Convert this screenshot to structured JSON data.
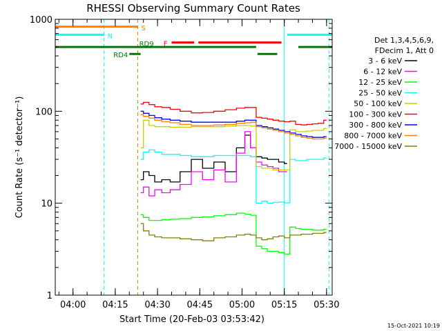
{
  "chart_data": {
    "type": "line",
    "title": "RHESSI Observing Summary Count Rates",
    "xlabel": "Start Time (20-Feb-03 03:53:42)",
    "ylabel": "Count Rate (s⁻¹ detector⁻¹)",
    "yscale": "log",
    "ylim": [
      1,
      1000
    ],
    "xlim": [
      "03:53:42",
      "05:32:00"
    ],
    "x_ticks": [
      "04:00",
      "04:15",
      "04:30",
      "04:45",
      "05:00",
      "05:15",
      "05:30"
    ],
    "y_ticks": [
      "1",
      "10",
      "100",
      "1000"
    ],
    "legend_header": [
      "Det 1,3,4,5,6,9,",
      "FDecim 1, Att 0"
    ],
    "legend_position": "right",
    "timestamp": "15-Oct-2021 10:19",
    "flag_bars": [
      {
        "label": "S",
        "color": "#ff7f00",
        "y": 830,
        "segments": [
          [
            "03:53:42",
            "04:23:00"
          ]
        ]
      },
      {
        "label": "N",
        "color": "#00ffff",
        "y": 680,
        "segments": [
          [
            "03:53:42",
            "04:11:00"
          ],
          [
            "05:16:00",
            "05:32:00"
          ]
        ]
      },
      {
        "label": "F",
        "color": "#ff0000",
        "y": 560,
        "segments": [
          [
            "04:35:00",
            "04:43:00"
          ],
          [
            "04:44:30",
            "05:14:00"
          ]
        ]
      },
      {
        "label": "RD9",
        "color": "#007700",
        "y": 500,
        "segments": [
          [
            "03:53:42",
            "05:05:00"
          ],
          [
            "05:20:00",
            "05:32:00"
          ]
        ]
      },
      {
        "label": "RD4",
        "color": "#007700",
        "y": 420,
        "segments": [
          [
            "04:20:00",
            "04:24:00"
          ],
          [
            "05:05:30",
            "05:12:30"
          ]
        ]
      }
    ],
    "vlines": [
      {
        "time": "03:53:42",
        "color": "#00ffff",
        "style": "solid"
      },
      {
        "time": "04:11:00",
        "color": "#00ffff",
        "style": "dashed"
      },
      {
        "time": "04:23:00",
        "color": "#ff7f00",
        "style": "dashed"
      },
      {
        "time": "05:15:00",
        "color": "#00ffff",
        "style": "solid"
      },
      {
        "time": "05:30:50",
        "color": "#00ffff",
        "style": "dashed"
      }
    ],
    "x": [
      "04:24",
      "04:26",
      "04:28",
      "04:30",
      "04:33",
      "04:36",
      "04:40",
      "04:44",
      "04:48",
      "04:52",
      "04:56",
      "05:00",
      "05:02",
      "05:04",
      "05:06",
      "05:08",
      "05:10",
      "05:12",
      "05:14",
      "05:16",
      "05:18",
      "05:20",
      "05:22",
      "05:24",
      "05:26",
      "05:28",
      "05:30"
    ],
    "series": [
      {
        "name": "3 - 6 keV",
        "color": "#000000",
        "values": [
          18,
          22,
          20,
          17,
          18,
          17,
          22,
          30,
          24,
          28,
          22,
          40,
          55,
          40,
          32,
          31,
          30,
          30,
          28,
          27,
          null,
          null,
          null,
          null,
          null,
          null,
          null
        ]
      },
      {
        "name": "6 - 12 keV",
        "color": "#ff00ff",
        "values": [
          13,
          15,
          12,
          14,
          13,
          14,
          16,
          22,
          18,
          23,
          17,
          35,
          60,
          40,
          28,
          26,
          25,
          24,
          22,
          22,
          null,
          null,
          null,
          null,
          null,
          null,
          null
        ]
      },
      {
        "name": "12 - 25 keV",
        "color": "#00ff00",
        "values": [
          7.5,
          7,
          6.5,
          6.5,
          6.6,
          6.7,
          6.8,
          7,
          7.1,
          7.3,
          7.5,
          7.8,
          7.6,
          7.4,
          3.4,
          3.2,
          3.0,
          3.0,
          2.9,
          2.8,
          5.5,
          5.3,
          5.2,
          5.2,
          5.1,
          5.1,
          5.2
        ]
      },
      {
        "name": "25 - 50 keV",
        "color": "#00ffff",
        "values": [
          30,
          36,
          38,
          36,
          34,
          34,
          33,
          32,
          32,
          33,
          33,
          33,
          33,
          32,
          10,
          10.5,
          10,
          10.2,
          10.3,
          10.1,
          30,
          29,
          29,
          30,
          30,
          30,
          31
        ]
      },
      {
        "name": "50 - 100 keV",
        "color": "#cccc00",
        "values": [
          40,
          80,
          70,
          68,
          68,
          67,
          67,
          68,
          68,
          68,
          69,
          70,
          70,
          69,
          25,
          24,
          24,
          23,
          23,
          23,
          63,
          60,
          60,
          61,
          62,
          62,
          65
        ]
      },
      {
        "name": "100 - 300 keV",
        "color": "#ff0000",
        "values": [
          120,
          125,
          118,
          112,
          110,
          105,
          100,
          96,
          97,
          100,
          104,
          108,
          110,
          110,
          86,
          84,
          82,
          80,
          78,
          77,
          78,
          72,
          71,
          72,
          73,
          74,
          80
        ]
      },
      {
        "name": "300 - 800 keV",
        "color": "#0000ff",
        "values": [
          100,
          95,
          90,
          85,
          82,
          80,
          78,
          76,
          76,
          76,
          76,
          78,
          80,
          80,
          70,
          68,
          66,
          64,
          62,
          60,
          58,
          56,
          54,
          53,
          52,
          52,
          53
        ]
      },
      {
        "name": "800 - 7000 keV",
        "color": "#ff7f00",
        "values": [
          92,
          88,
          84,
          80,
          77,
          75,
          72,
          70,
          70,
          71,
          72,
          74,
          75,
          76,
          68,
          66,
          64,
          62,
          60,
          58,
          56,
          54,
          52,
          51,
          50,
          50,
          51
        ]
      },
      {
        "name": "7000 - 15000 keV",
        "color": "#808000",
        "values": [
          6,
          5,
          4.5,
          4.3,
          4.2,
          4.2,
          4.1,
          4,
          3.9,
          4.2,
          4.3,
          4.5,
          4.6,
          4.5,
          4.2,
          4.0,
          4.1,
          4.3,
          4.4,
          4.2,
          4.5,
          4.5,
          4.6,
          4.6,
          4.7,
          4.7,
          4.8
        ]
      }
    ]
  }
}
